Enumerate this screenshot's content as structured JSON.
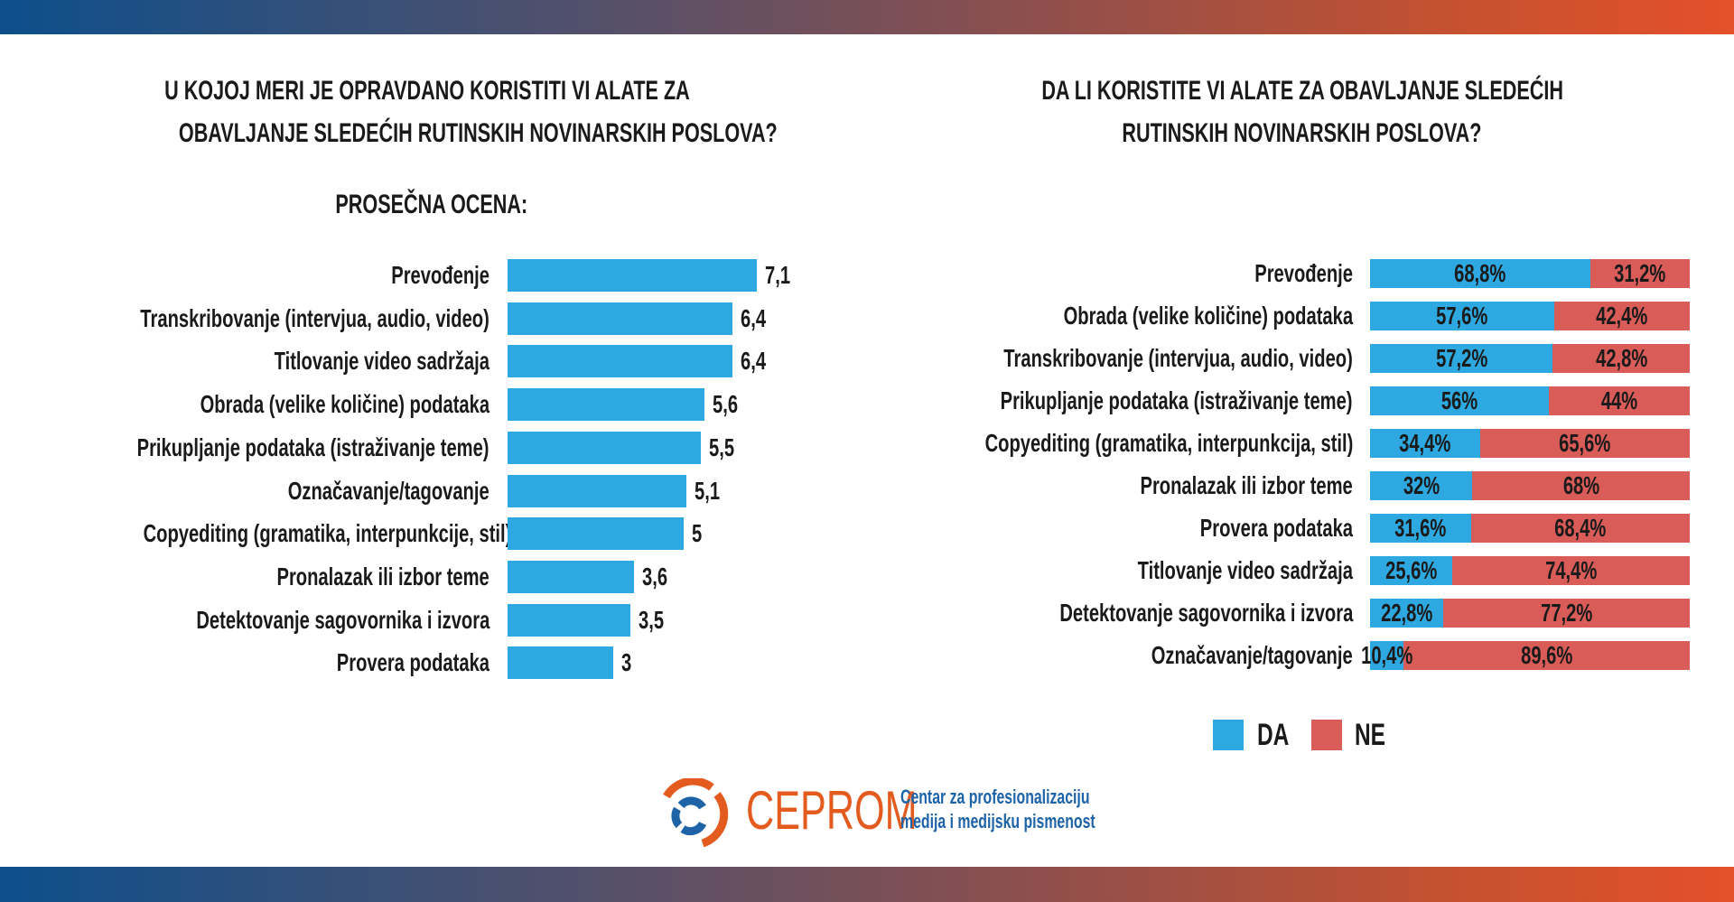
{
  "colors": {
    "da": "#2ea8e0",
    "ne": "#d95c58",
    "band_start": "#0d4f8b",
    "band_end": "#e4502a",
    "logo_orange": "#e35b1e",
    "logo_blue": "#1e63a8"
  },
  "chart_data": [
    {
      "type": "bar",
      "orientation": "horizontal",
      "title": "U KOJOJ MERI JE OPRAVDANO KORISTITI VI ALATE ZA OBAVLJANJE SLEDEĆIH RUTINSKIH NOVINARSKIH POSLOVA?",
      "title_lines": [
        "U KOJOJ MERI JE OPRAVDANO KORISTITI VI ALATE ZA",
        "OBAVLJANJE SLEDEĆIH RUTINSKIH NOVINARSKIH POSLOVA?"
      ],
      "subtitle": "PROSEČNA OCENA:",
      "categories": [
        "Prevođenje",
        "Transkribovanje (intervjua, audio, video)",
        "Titlovanje video sadržaja",
        "Obrada (velike količine) podataka",
        "Prikupljanje podataka (istraživanje teme)",
        "Označavanje/tagovanje",
        "Copyediting (gramatika, interpunkcije, stil)",
        "Pronalazak ili izbor teme",
        "Detektovanje sagovornika i izvora",
        "Provera podataka"
      ],
      "values": [
        7.1,
        6.4,
        6.4,
        5.6,
        5.5,
        5.1,
        5,
        3.6,
        3.5,
        3
      ],
      "value_labels": [
        "7,1",
        "6,4",
        "6,4",
        "5,6",
        "5,5",
        "5,1",
        "5",
        "3,6",
        "3,5",
        "3"
      ],
      "grid": false
    },
    {
      "type": "bar",
      "orientation": "horizontal",
      "stacked": true,
      "title": "DA LI KORISTITE VI ALATE ZA OBAVLJANJE SLEDEĆIH RUTINSKIH NOVINARSKIH POSLOVA?",
      "title_lines": [
        "DA LI KORISTITE VI ALATE ZA OBAVLJANJE SLEDEĆIH",
        "RUTINSKIH NOVINARSKIH POSLOVA?"
      ],
      "categories": [
        "Prevođenje",
        "Obrada (velike količine) podataka",
        "Transkribovanje (intervjua, audio, video)",
        "Prikupljanje podataka (istraživanje teme)",
        "Copyediting (gramatika, interpunkcija, stil)",
        "Pronalazak ili izbor teme",
        "Provera podataka",
        "Titlovanje video sadržaja",
        "Detektovanje sagovornika i izvora",
        "Označavanje/tagovanje"
      ],
      "series": [
        {
          "name": "DA",
          "values": [
            68.8,
            57.6,
            57.2,
            56,
            34.4,
            32,
            31.6,
            25.6,
            22.8,
            10.4
          ],
          "labels": [
            "68,8%",
            "57,6%",
            "57,2%",
            "56%",
            "34,4%",
            "32%",
            "31,6%",
            "25,6%",
            "22,8%",
            "10,4%"
          ]
        },
        {
          "name": "NE",
          "values": [
            31.2,
            42.4,
            42.8,
            44,
            65.6,
            68,
            68.4,
            74.4,
            77.2,
            89.6
          ],
          "labels": [
            "31,2%",
            "42,4%",
            "42,8%",
            "44%",
            "65,6%",
            "68%",
            "68,4%",
            "74,4%",
            "77,2%",
            "89,6%"
          ]
        }
      ],
      "xlim": [
        0,
        100
      ],
      "legend": "bottom",
      "grid": false
    }
  ],
  "logo": {
    "name": "CEPROM",
    "tagline_lines": [
      "Centar za profesionalizaciju",
      "medija i medijsku pismenost"
    ]
  }
}
